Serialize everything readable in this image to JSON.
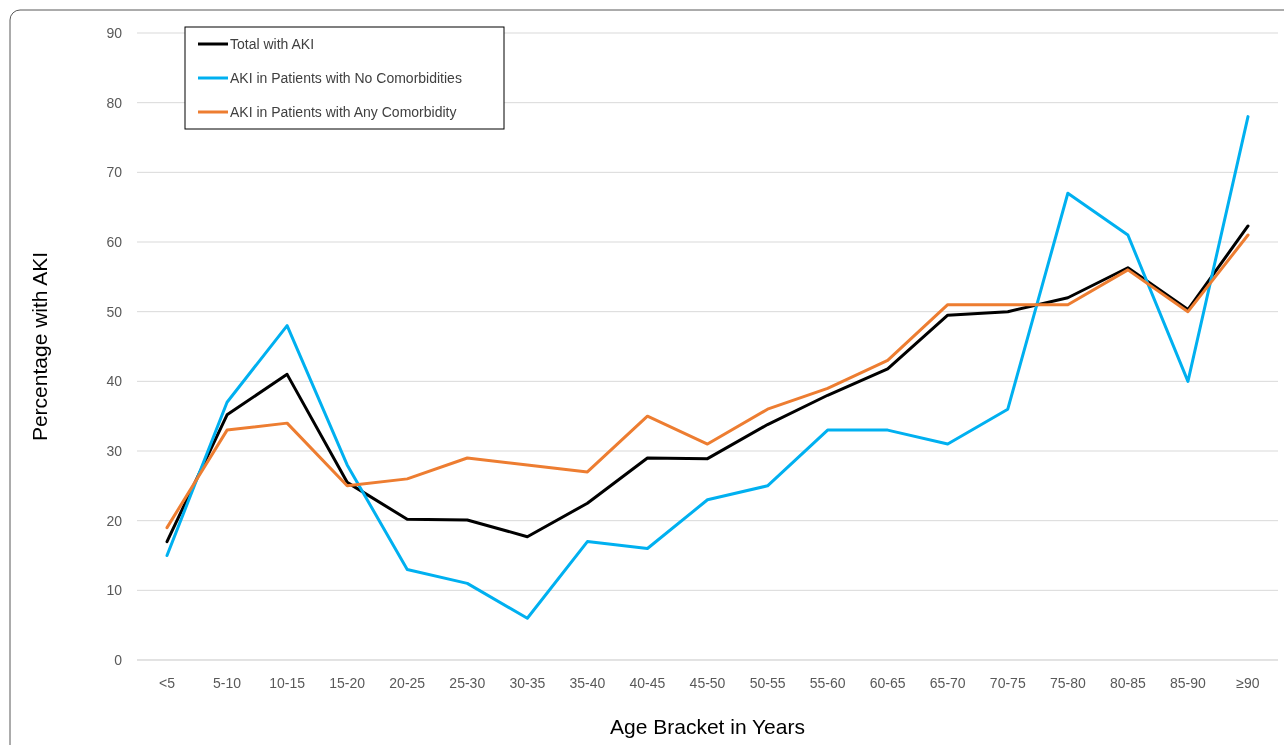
{
  "chart_data": {
    "type": "line",
    "xlabel": "Age Bracket in Years",
    "ylabel": "Percentage with AKI",
    "categories": [
      "<5",
      "5-10",
      "10-15",
      "15-20",
      "20-25",
      "25-30",
      "30-35",
      "35-40",
      "40-45",
      "45-50",
      "50-55",
      "55-60",
      "60-65",
      "65-70",
      "70-75",
      "75-80",
      "80-85",
      "85-90",
      "≥90"
    ],
    "series": [
      {
        "name": "Total with AKI",
        "color": "#000000",
        "values": [
          17,
          35.2,
          41,
          25.5,
          20.2,
          20.1,
          17.7,
          22.5,
          29,
          28.9,
          33.8,
          38,
          41.8,
          49.5,
          50,
          52,
          56.3,
          50.3,
          62.3
        ]
      },
      {
        "name": "AKI in Patients with No Comorbidities",
        "color": "#00b0f0",
        "values": [
          15,
          37,
          48,
          28,
          13,
          11,
          6,
          17,
          16,
          23,
          25,
          33,
          33,
          31,
          36,
          67,
          61,
          40,
          78
        ]
      },
      {
        "name": "AKI in Patients with Any Comorbidity",
        "color": "#ed7d31",
        "values": [
          19,
          33,
          34,
          25,
          26,
          29,
          28,
          27,
          35,
          31,
          36,
          39,
          43,
          51,
          51,
          51,
          56,
          50,
          61
        ]
      }
    ],
    "ylim": [
      0,
      90
    ],
    "yticks": [
      0,
      10,
      20,
      30,
      40,
      50,
      60,
      70,
      80,
      90
    ],
    "grid": "y",
    "legend": "top left",
    "marker": "none",
    "line_style": "solid"
  }
}
